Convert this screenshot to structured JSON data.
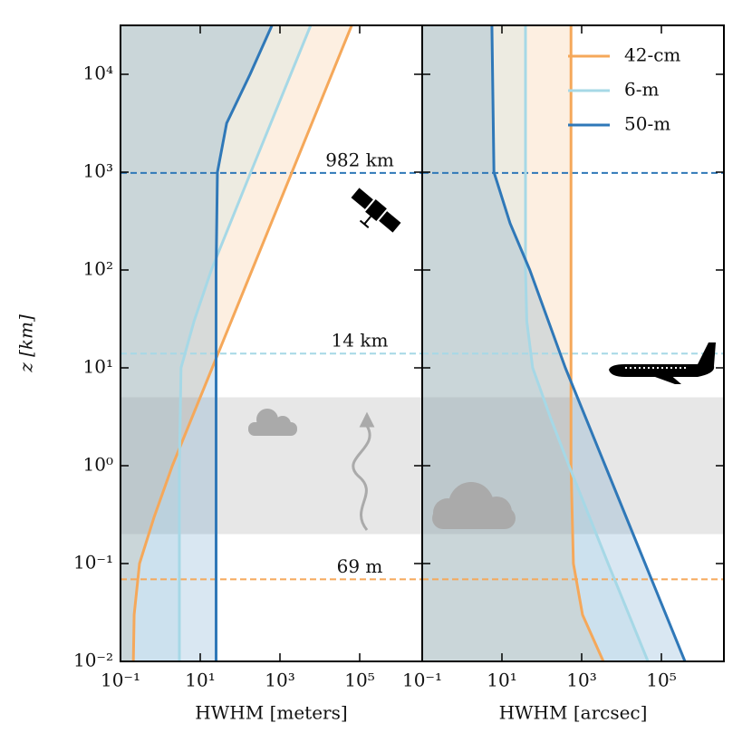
{
  "chart_data": [
    {
      "type": "line",
      "xlabel": "HWHM [meters]",
      "ylabel": "z [km]",
      "xscale": "log",
      "yscale": "log",
      "xlim": [
        0.1,
        3700000
      ],
      "ylim": [
        0.01,
        31623
      ],
      "xticks": [
        {
          "value": 0.1,
          "label": "10⁻¹"
        },
        {
          "value": 10,
          "label": "10¹"
        },
        {
          "value": 1000,
          "label": "10³"
        },
        {
          "value": 100000,
          "label": "10⁵"
        }
      ],
      "yticks": [
        {
          "value": 0.01,
          "label": "10⁻²"
        },
        {
          "value": 0.1,
          "label": "10⁻¹"
        },
        {
          "value": 1,
          "label": "10⁰"
        },
        {
          "value": 10,
          "label": "10¹"
        },
        {
          "value": 100,
          "label": "10²"
        },
        {
          "value": 1000,
          "label": "10³"
        },
        {
          "value": 10000,
          "label": "10⁴"
        }
      ],
      "band": [
        0.2,
        5
      ],
      "hlines": [
        {
          "value": 982,
          "label": "982 km",
          "color": "#2f78b8"
        },
        {
          "value": 14,
          "label": "14 km",
          "color": "#a6d8e6"
        },
        {
          "value": 0.069,
          "label": "69 m",
          "color": "#f5a85a"
        }
      ],
      "series": [
        {
          "color": "#f5a85a",
          "z": [
            0.01,
            0.03,
            0.1,
            0.3,
            1,
            10,
            100,
            1000,
            31623
          ],
          "values": [
            0.21,
            0.22,
            0.3,
            0.7,
            2,
            20,
            200,
            2000,
            63000
          ]
        },
        {
          "color": "#a6d8e6",
          "z": [
            0.01,
            1,
            10,
            30,
            100,
            1000,
            31623
          ],
          "values": [
            3,
            3,
            3.3,
            7,
            19,
            186,
            5900
          ]
        },
        {
          "color": "#2f78b8",
          "z": [
            0.01,
            1,
            100,
            1000,
            3162,
            10000,
            31623
          ],
          "values": [
            25,
            25,
            25,
            27,
            46,
            178,
            630
          ]
        }
      ]
    },
    {
      "type": "line",
      "xlabel": "HWHM [arcsec]",
      "xscale": "log",
      "yscale": "log",
      "xlim": [
        0.1,
        3700000
      ],
      "ylim": [
        0.01,
        31623
      ],
      "xticks": [
        {
          "value": 0.1,
          "label": "10⁻¹"
        },
        {
          "value": 10,
          "label": "10¹"
        },
        {
          "value": 1000,
          "label": "10³"
        },
        {
          "value": 100000,
          "label": "10⁵"
        }
      ],
      "yticks": [
        0.01,
        0.1,
        1,
        10,
        100,
        1000,
        10000
      ],
      "legend": "upper right",
      "series": [
        {
          "name": "42-cm",
          "color": "#f5a85a",
          "z": [
            0.01,
            0.03,
            0.1,
            1,
            10,
            100,
            31623
          ],
          "values": [
            3500,
            1050,
            620,
            540,
            540,
            540,
            540
          ]
        },
        {
          "name": "6-m",
          "color": "#a6d8e6",
          "z": [
            0.01,
            0.1,
            1,
            3,
            10,
            30,
            100,
            31623
          ],
          "values": [
            46000,
            4600,
            480,
            170,
            59,
            42,
            39,
            39
          ]
        },
        {
          "name": "50-m",
          "color": "#2f78b8",
          "z": [
            0.01,
            0.1,
            1,
            10,
            100,
            300,
            1000,
            31623
          ],
          "values": [
            390000,
            39000,
            3900,
            390,
            50,
            16,
            6.3,
            5.6
          ]
        }
      ]
    }
  ]
}
